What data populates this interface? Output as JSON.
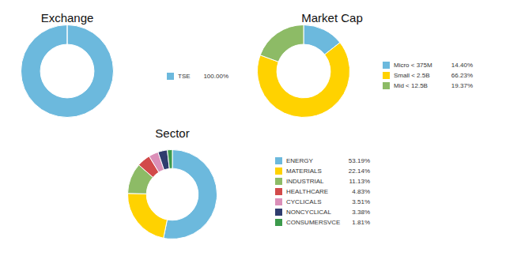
{
  "chart_data": [
    {
      "type": "doughnut",
      "title": "Exchange",
      "categories": [
        "TSE"
      ],
      "values": [
        100.0
      ],
      "value_labels": [
        "100.00%"
      ],
      "colors": [
        "#6cb9dd"
      ]
    },
    {
      "type": "doughnut",
      "title": "Market Cap",
      "categories": [
        "Micro < 375M",
        "Small < 2.5B",
        "Mid < 12.5B"
      ],
      "values": [
        14.4,
        66.23,
        19.37
      ],
      "value_labels": [
        "14.40%",
        "66.23%",
        "19.37%"
      ],
      "colors": [
        "#6cb9dd",
        "#ffd200",
        "#8dbb66"
      ]
    },
    {
      "type": "doughnut",
      "title": "Sector",
      "categories": [
        "ENERGY",
        "MATERIALS",
        "INDUSTRIAL",
        "HEALTHCARE",
        "CYCLICALS",
        "NONCYCLICAL",
        "CONSUMERSVCE"
      ],
      "values": [
        53.19,
        22.14,
        11.13,
        4.83,
        3.51,
        3.38,
        1.81
      ],
      "value_labels": [
        "53.19%",
        "22.14%",
        "11.13%",
        "4.83%",
        "3.51%",
        "3.38%",
        "1.81%"
      ],
      "colors": [
        "#6cb9dd",
        "#ffd200",
        "#8dbb66",
        "#d24a4a",
        "#db8fb8",
        "#2f3c6e",
        "#3c9a4c"
      ]
    }
  ]
}
